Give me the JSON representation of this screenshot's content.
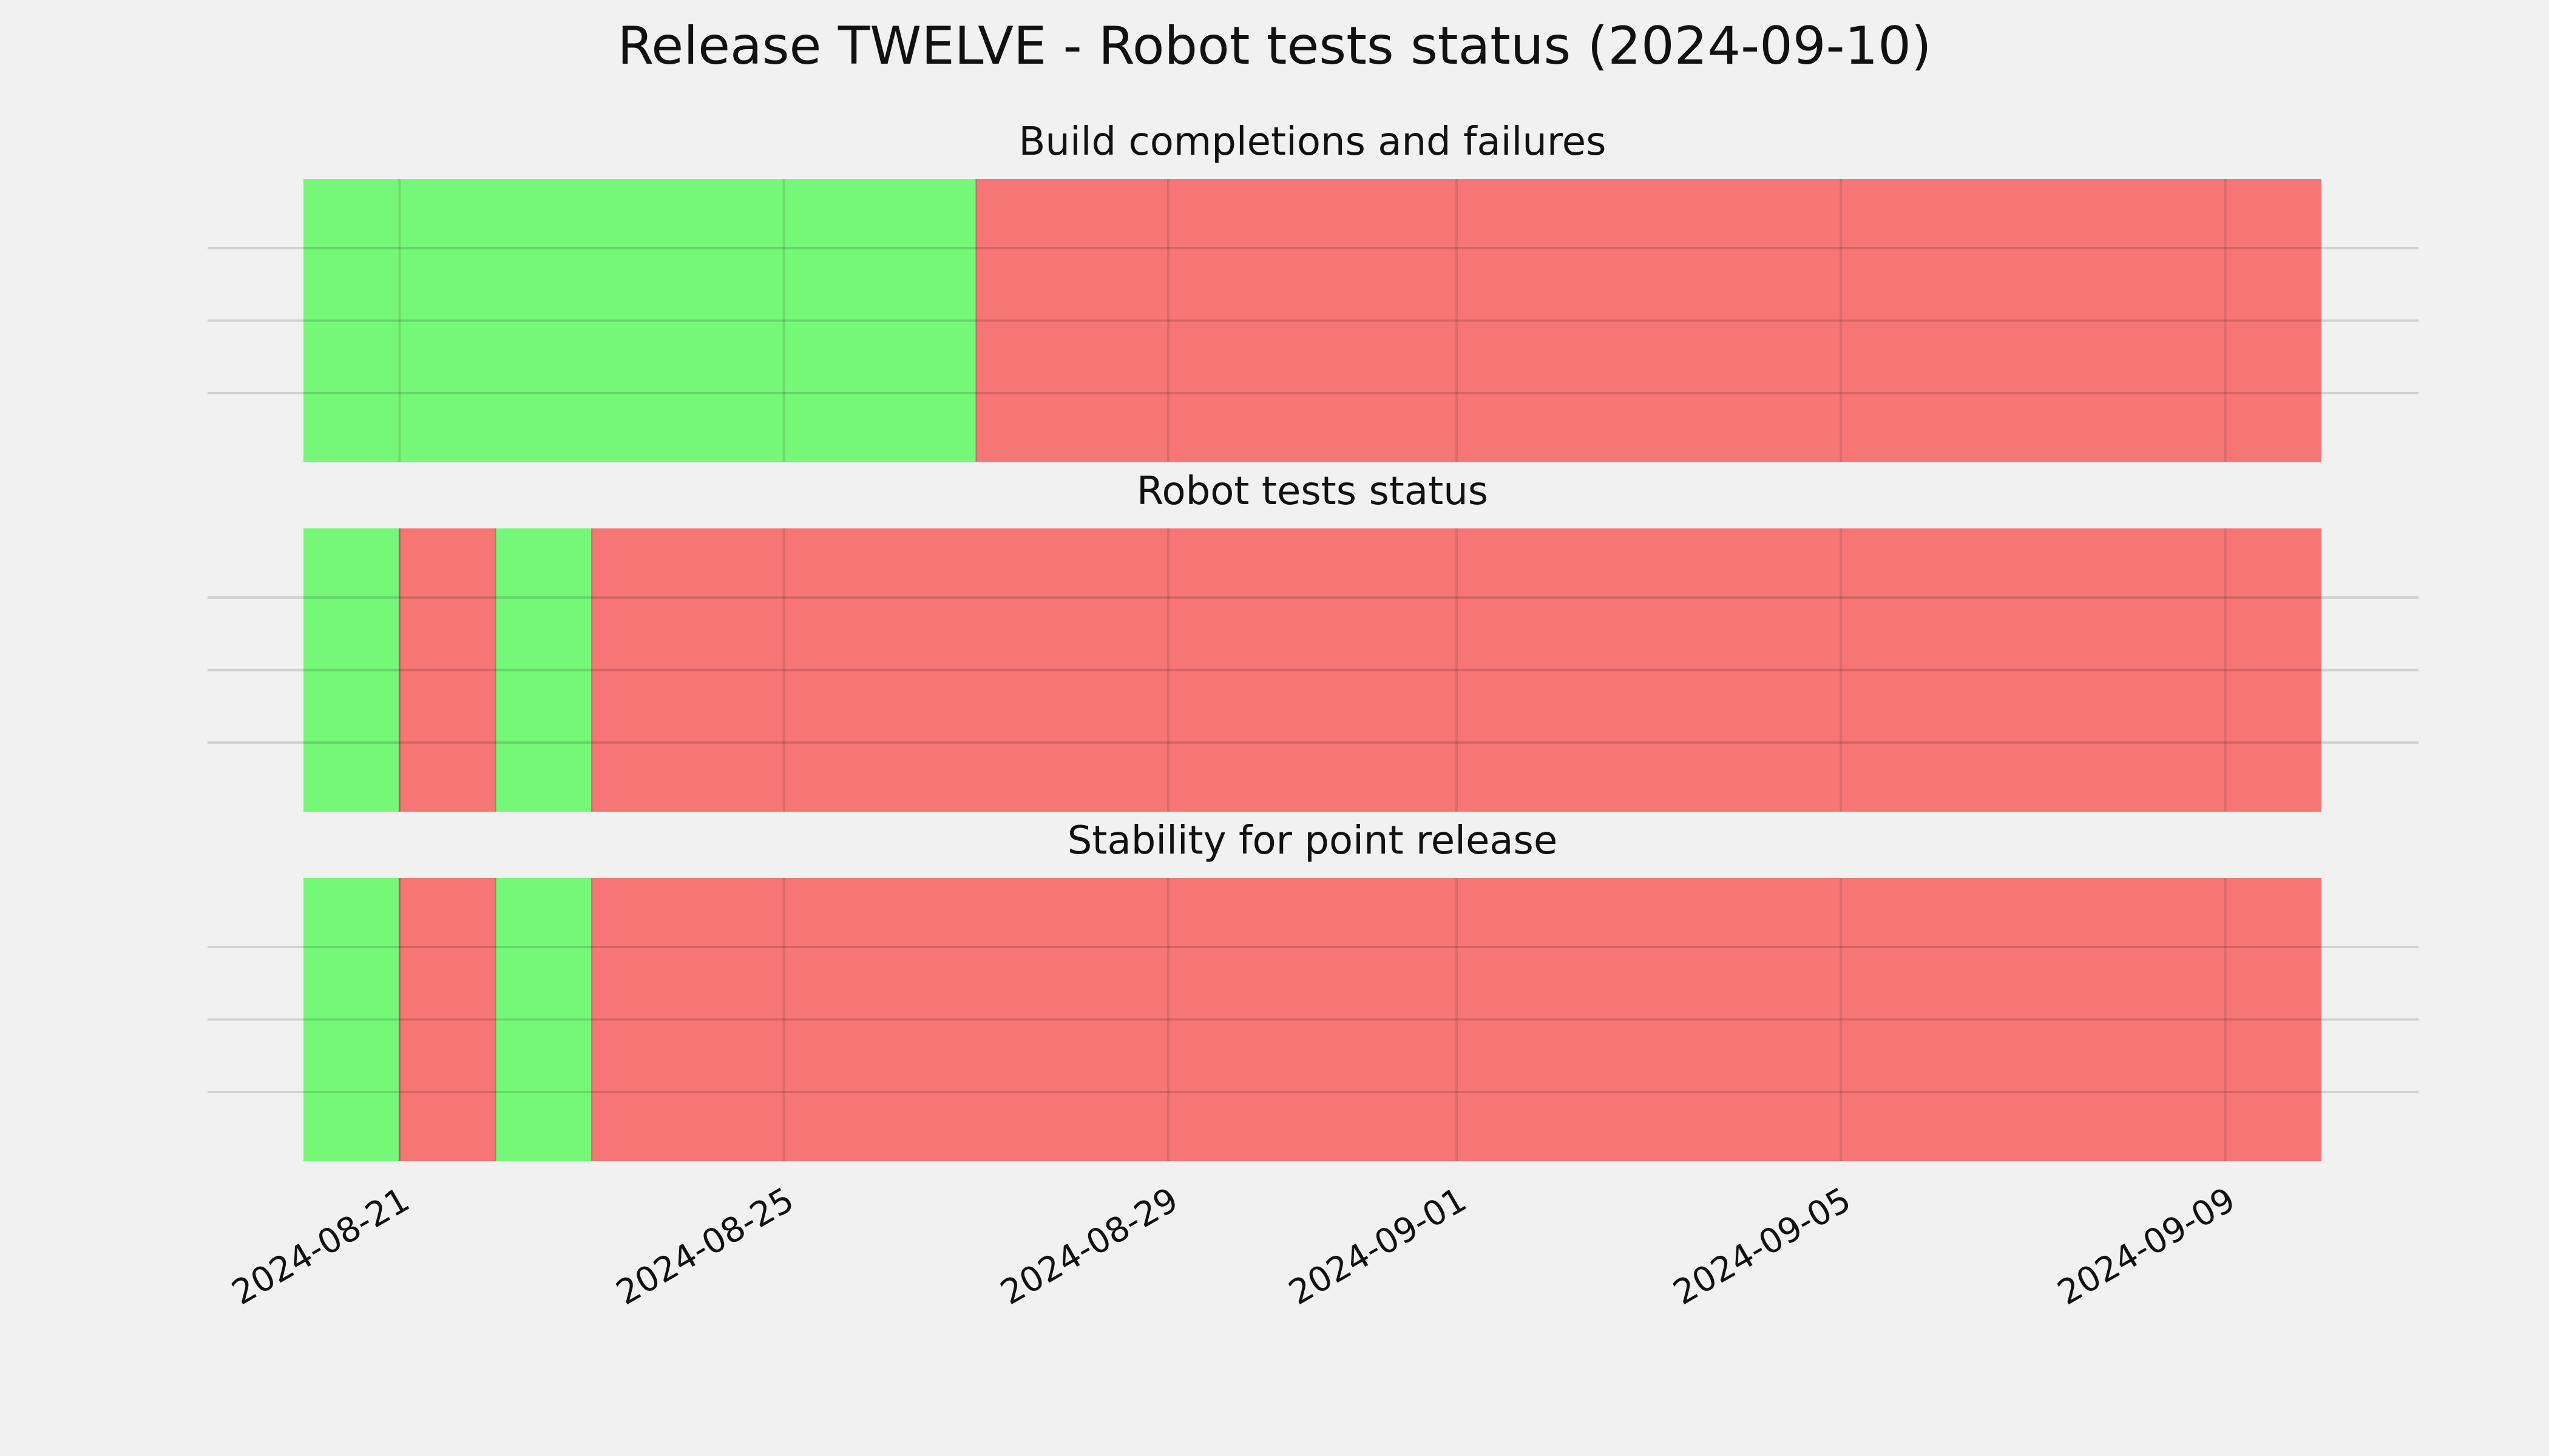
{
  "chart_data": {
    "type": "timeline",
    "title": "Release TWELVE - Robot tests status (2024-09-10)",
    "x_range": [
      "2024-08-20",
      "2024-09-10"
    ],
    "x_ticks": [
      "2024-08-21",
      "2024-08-25",
      "2024-08-29",
      "2024-09-01",
      "2024-09-05",
      "2024-09-09"
    ],
    "grid": true,
    "status_colors": {
      "pass": "#75f878",
      "fail": "#f67676"
    },
    "subplots": [
      {
        "title": "Build completions and failures",
        "segments": [
          {
            "start": "2024-08-20",
            "end": "2024-08-27",
            "status": "pass"
          },
          {
            "start": "2024-08-27",
            "end": "2024-09-10",
            "status": "fail"
          }
        ]
      },
      {
        "title": "Robot tests status",
        "segments": [
          {
            "start": "2024-08-20",
            "end": "2024-08-21",
            "status": "pass"
          },
          {
            "start": "2024-08-21",
            "end": "2024-08-22",
            "status": "fail"
          },
          {
            "start": "2024-08-22",
            "end": "2024-08-23",
            "status": "pass"
          },
          {
            "start": "2024-08-23",
            "end": "2024-09-10",
            "status": "fail"
          }
        ]
      },
      {
        "title": "Stability for point release",
        "segments": [
          {
            "start": "2024-08-20",
            "end": "2024-08-21",
            "status": "pass"
          },
          {
            "start": "2024-08-21",
            "end": "2024-08-22",
            "status": "fail"
          },
          {
            "start": "2024-08-22",
            "end": "2024-08-23",
            "status": "pass"
          },
          {
            "start": "2024-08-23",
            "end": "2024-09-10",
            "status": "fail"
          }
        ]
      }
    ]
  }
}
